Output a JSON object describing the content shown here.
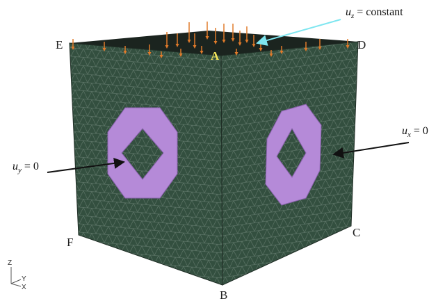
{
  "vertices": {
    "E": "E",
    "D": "D",
    "A": "A",
    "F": "F",
    "B": "B",
    "C": "C"
  },
  "annotations": [
    {
      "symbol": "u",
      "subscript": "z",
      "rest": "= constant"
    },
    {
      "symbol": "u",
      "subscript": "y",
      "rest": "= 0"
    },
    {
      "symbol": "u",
      "subscript": "x",
      "rest": "= 0"
    }
  ],
  "axes": {
    "z": "Z",
    "y": "Y",
    "x": "X"
  }
}
